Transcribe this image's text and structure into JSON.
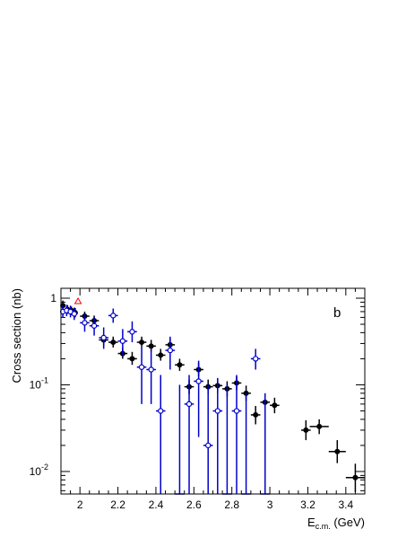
{
  "chart_data": {
    "type": "scatter",
    "panel_label": "b",
    "ylabel": "Cross section (nb)",
    "xlabel_main": "E",
    "xlabel_sub": "c.m.",
    "xlabel_unit": " (GeV)",
    "xlim": [
      1.9,
      3.5
    ],
    "ylim": [
      0.0055,
      1.3
    ],
    "yscale": "log",
    "grid": false,
    "x_ticks": [
      {
        "v": 2.0,
        "label": "2"
      },
      {
        "v": 2.2,
        "label": "2.2"
      },
      {
        "v": 2.4,
        "label": "2.4"
      },
      {
        "v": 2.6,
        "label": "2.6"
      },
      {
        "v": 2.8,
        "label": "2.8"
      },
      {
        "v": 3.0,
        "label": "3"
      },
      {
        "v": 3.2,
        "label": "3.2"
      },
      {
        "v": 3.4,
        "label": "3.4"
      }
    ],
    "y_ticks": [
      {
        "v": 1,
        "label": "1"
      },
      {
        "v": 0.1,
        "label": "10",
        "exp": "-1"
      },
      {
        "v": 0.01,
        "label": "10",
        "exp": "-2"
      }
    ],
    "colors": {
      "black_series": "#000000",
      "blue_series": "#0000cc",
      "red_series": "#ff0000"
    },
    "series": [
      {
        "marker": "filled-circle",
        "color": "#000000",
        "points": [
          {
            "x": 1.91,
            "y": 0.82,
            "xerr": 0.01,
            "ylo": 0.72,
            "yhi": 0.94
          },
          {
            "x": 1.935,
            "y": 0.74,
            "xerr": 0.01,
            "ylo": 0.66,
            "yhi": 0.83
          },
          {
            "x": 1.955,
            "y": 0.72,
            "xerr": 0.01,
            "ylo": 0.64,
            "yhi": 0.8
          },
          {
            "x": 1.975,
            "y": 0.68,
            "xerr": 0.01,
            "ylo": 0.6,
            "yhi": 0.77
          },
          {
            "x": 2.025,
            "y": 0.62,
            "xerr": 0.025,
            "ylo": 0.55,
            "yhi": 0.7
          },
          {
            "x": 2.075,
            "y": 0.55,
            "xerr": 0.025,
            "ylo": 0.48,
            "yhi": 0.63
          },
          {
            "x": 2.125,
            "y": 0.33,
            "xerr": 0.025,
            "ylo": 0.28,
            "yhi": 0.39
          },
          {
            "x": 2.175,
            "y": 0.31,
            "xerr": 0.025,
            "ylo": 0.27,
            "yhi": 0.36
          },
          {
            "x": 2.225,
            "y": 0.23,
            "xerr": 0.025,
            "ylo": 0.2,
            "yhi": 0.27
          },
          {
            "x": 2.275,
            "y": 0.2,
            "xerr": 0.025,
            "ylo": 0.17,
            "yhi": 0.24
          },
          {
            "x": 2.325,
            "y": 0.31,
            "xerr": 0.025,
            "ylo": 0.27,
            "yhi": 0.36
          },
          {
            "x": 2.375,
            "y": 0.28,
            "xerr": 0.025,
            "ylo": 0.24,
            "yhi": 0.33
          },
          {
            "x": 2.425,
            "y": 0.22,
            "xerr": 0.025,
            "ylo": 0.19,
            "yhi": 0.26
          },
          {
            "x": 2.475,
            "y": 0.29,
            "xerr": 0.025,
            "ylo": 0.25,
            "yhi": 0.34
          },
          {
            "x": 2.525,
            "y": 0.17,
            "xerr": 0.025,
            "ylo": 0.145,
            "yhi": 0.2
          },
          {
            "x": 2.575,
            "y": 0.095,
            "xerr": 0.025,
            "ylo": 0.078,
            "yhi": 0.115
          },
          {
            "x": 2.625,
            "y": 0.15,
            "xerr": 0.025,
            "ylo": 0.125,
            "yhi": 0.18
          },
          {
            "x": 2.675,
            "y": 0.095,
            "xerr": 0.025,
            "ylo": 0.078,
            "yhi": 0.115
          },
          {
            "x": 2.725,
            "y": 0.098,
            "xerr": 0.025,
            "ylo": 0.08,
            "yhi": 0.118
          },
          {
            "x": 2.775,
            "y": 0.09,
            "xerr": 0.025,
            "ylo": 0.073,
            "yhi": 0.11
          },
          {
            "x": 2.825,
            "y": 0.105,
            "xerr": 0.025,
            "ylo": 0.087,
            "yhi": 0.125
          },
          {
            "x": 2.875,
            "y": 0.08,
            "xerr": 0.025,
            "ylo": 0.065,
            "yhi": 0.098
          },
          {
            "x": 2.925,
            "y": 0.045,
            "xerr": 0.025,
            "ylo": 0.035,
            "yhi": 0.057
          },
          {
            "x": 2.975,
            "y": 0.063,
            "xerr": 0.025,
            "ylo": 0.051,
            "yhi": 0.077
          },
          {
            "x": 3.025,
            "y": 0.058,
            "xerr": 0.025,
            "ylo": 0.047,
            "yhi": 0.071
          },
          {
            "x": 3.19,
            "y": 0.03,
            "xerr": 0.025,
            "ylo": 0.023,
            "yhi": 0.039
          },
          {
            "x": 3.26,
            "y": 0.033,
            "xerr": 0.05,
            "ylo": 0.027,
            "yhi": 0.04
          },
          {
            "x": 3.355,
            "y": 0.017,
            "xerr": 0.045,
            "ylo": 0.0125,
            "yhi": 0.023
          },
          {
            "x": 3.45,
            "y": 0.0085,
            "xerr": 0.05,
            "ylo": 0.0058,
            "yhi": 0.0123
          }
        ]
      },
      {
        "marker": "open-circle",
        "color": "#0000cc",
        "points": [
          {
            "x": 1.91,
            "y": 0.7,
            "xerr": 0.01,
            "ylo": 0.6,
            "yhi": 0.82
          },
          {
            "x": 1.93,
            "y": 0.72,
            "xerr": 0.01,
            "ylo": 0.62,
            "yhi": 0.84
          },
          {
            "x": 1.95,
            "y": 0.7,
            "xerr": 0.01,
            "ylo": 0.6,
            "yhi": 0.82
          },
          {
            "x": 1.97,
            "y": 0.66,
            "xerr": 0.01,
            "ylo": 0.56,
            "yhi": 0.78
          },
          {
            "x": 2.025,
            "y": 0.52,
            "xerr": 0.025,
            "ylo": 0.41,
            "yhi": 0.65
          },
          {
            "x": 2.075,
            "y": 0.48,
            "xerr": 0.025,
            "ylo": 0.37,
            "yhi": 0.61
          },
          {
            "x": 2.125,
            "y": 0.35,
            "xerr": 0.025,
            "ylo": 0.26,
            "yhi": 0.46
          },
          {
            "x": 2.175,
            "y": 0.63,
            "xerr": 0.025,
            "ylo": 0.52,
            "yhi": 0.76
          },
          {
            "x": 2.225,
            "y": 0.32,
            "xerr": 0.025,
            "ylo": 0.22,
            "yhi": 0.44
          },
          {
            "x": 2.275,
            "y": 0.41,
            "xerr": 0.025,
            "ylo": 0.31,
            "yhi": 0.54
          },
          {
            "x": 2.325,
            "y": 0.16,
            "xerr": 0.025,
            "ylo": 0.06,
            "yhi": 0.27
          },
          {
            "x": 2.375,
            "y": 0.15,
            "xerr": 0.025,
            "ylo": 0.06,
            "yhi": 0.26
          },
          {
            "x": 2.425,
            "y": 0.05,
            "xerr": 0.025,
            "ylo": 0.0052,
            "yhi": 0.13
          },
          {
            "x": 2.475,
            "y": 0.25,
            "xerr": 0.025,
            "ylo": 0.15,
            "yhi": 0.36
          },
          {
            "x": 2.525,
            "y": 0.0045,
            "xerr": 0.025,
            "ylo": 0.0045,
            "yhi": 0.1
          },
          {
            "x": 2.575,
            "y": 0.06,
            "xerr": 0.025,
            "ylo": 0.0052,
            "yhi": 0.13
          },
          {
            "x": 2.625,
            "y": 0.11,
            "xerr": 0.025,
            "ylo": 0.025,
            "yhi": 0.19
          },
          {
            "x": 2.675,
            "y": 0.02,
            "xerr": 0.025,
            "ylo": 0.0052,
            "yhi": 0.1
          },
          {
            "x": 2.725,
            "y": 0.05,
            "xerr": 0.025,
            "ylo": 0.0052,
            "yhi": 0.12
          },
          {
            "x": 2.775,
            "y": 0.0045,
            "xerr": 0.025,
            "ylo": 0.0045,
            "yhi": 0.1
          },
          {
            "x": 2.825,
            "y": 0.05,
            "xerr": 0.025,
            "ylo": 0.0052,
            "yhi": 0.13
          },
          {
            "x": 2.875,
            "y": 0.0045,
            "xerr": 0.025,
            "ylo": 0.0045,
            "yhi": 0.08
          },
          {
            "x": 2.925,
            "y": 0.2,
            "xerr": 0.025,
            "ylo": 0.15,
            "yhi": 0.26
          },
          {
            "x": 2.975,
            "y": 0.0045,
            "xerr": 0.025,
            "ylo": 0.0045,
            "yhi": 0.08
          }
        ]
      },
      {
        "marker": "open-triangle",
        "color": "#ff0000",
        "points": [
          {
            "x": 1.99,
            "y": 0.92,
            "xerr": 0,
            "ylo": 0.92,
            "yhi": 0.92
          }
        ]
      }
    ]
  }
}
